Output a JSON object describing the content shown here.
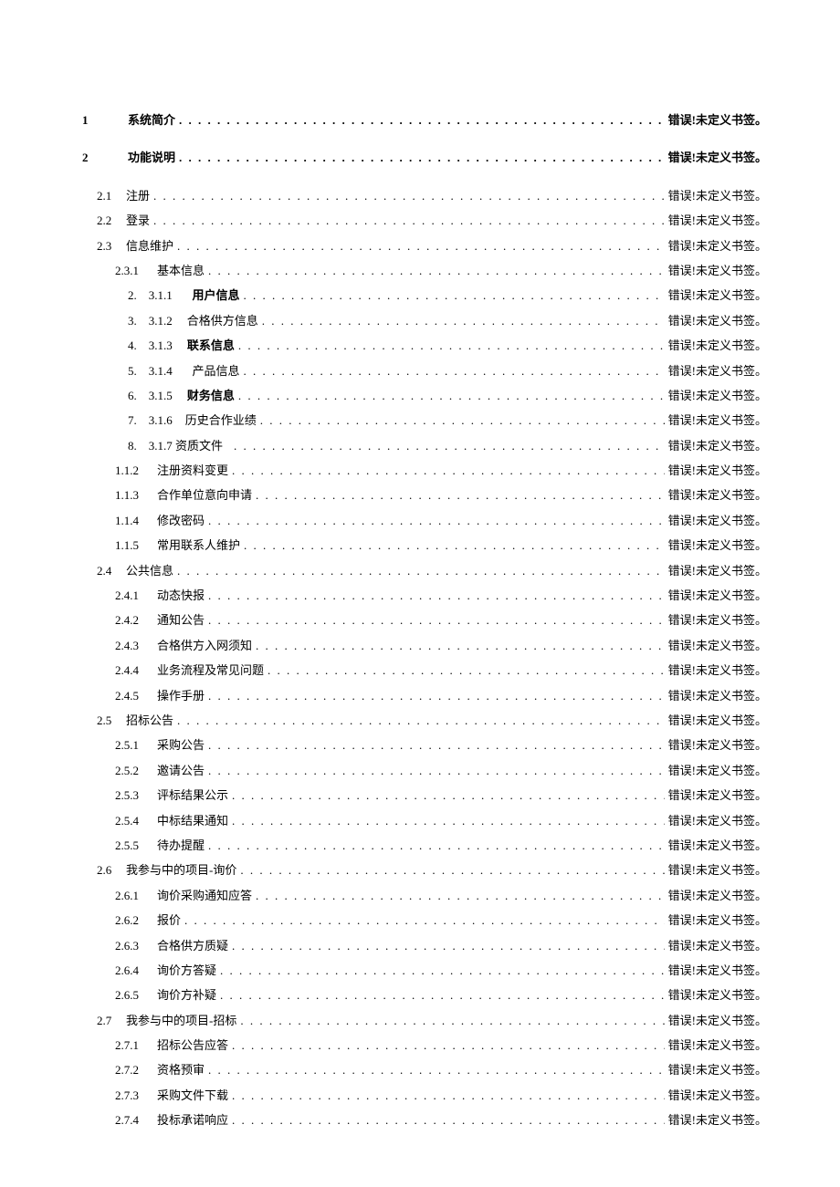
{
  "error_text": "错误!未定义书签。",
  "colors": {
    "background": "#ffffff",
    "text": "#000000"
  },
  "typography": {
    "font_family": "SimSun",
    "base_size_pt": 10
  },
  "toc": [
    {
      "level": 0,
      "num": "1",
      "title": "系统简介",
      "bold": true
    },
    {
      "level": 0,
      "num": "2",
      "title": "功能说明",
      "bold": true
    },
    {
      "level": 1,
      "num": "2.1",
      "title": "注册"
    },
    {
      "level": 1,
      "num": "2.2",
      "title": "登录"
    },
    {
      "level": 1,
      "num": "2.3",
      "title": "信息维护"
    },
    {
      "level": 2,
      "num": "2.3.1",
      "title": "基本信息"
    },
    {
      "level": 3,
      "num": "2.　3.1.1",
      "title": "用户信息",
      "bold_title": true,
      "pad_before_title": 24
    },
    {
      "level": 3,
      "num": "3.　3.1.2",
      "title": "合格供方信息",
      "pad_before_title": 8
    },
    {
      "level": 3,
      "num": "4.　3.1.3",
      "title": "联系信息",
      "bold_title": true,
      "pad_before_title": 8
    },
    {
      "level": 3,
      "num": "5.　3.1.4",
      "title": "产品信息",
      "pad_before_title": 24
    },
    {
      "level": 3,
      "num": "6.　3.1.5",
      "title": "财务信息",
      "bold_title": true,
      "pad_before_title": 8
    },
    {
      "level": 3,
      "num": "7.　3.1.6",
      "title": "历史合作业绩",
      "pad_before_title": 2
    },
    {
      "level": 3,
      "num": "8.　3.1.7 资质文件",
      "title": ""
    },
    {
      "level": 2,
      "num": "1.1.2",
      "title": "注册资料变更"
    },
    {
      "level": 2,
      "num": "1.1.3",
      "title": "合作单位意向申请"
    },
    {
      "level": 2,
      "num": "1.1.4",
      "title": "修改密码"
    },
    {
      "level": 2,
      "num": "1.1.5",
      "title": "常用联系人维护"
    },
    {
      "level": 1,
      "num": "2.4",
      "title": "公共信息"
    },
    {
      "level": 2,
      "num": "2.4.1",
      "title": "动态快报"
    },
    {
      "level": 2,
      "num": "2.4.2",
      "title": "通知公告"
    },
    {
      "level": 2,
      "num": "2.4.3",
      "title": "合格供方入网须知"
    },
    {
      "level": 2,
      "num": "2.4.4",
      "title": "业务流程及常见问题"
    },
    {
      "level": 2,
      "num": "2.4.5",
      "title": "操作手册"
    },
    {
      "level": 1,
      "num": "2.5",
      "title": "招标公告"
    },
    {
      "level": 2,
      "num": "2.5.1",
      "title": "采购公告"
    },
    {
      "level": 2,
      "num": "2.5.2",
      "title": "邀请公告"
    },
    {
      "level": 2,
      "num": "2.5.3",
      "title": "评标结果公示"
    },
    {
      "level": 2,
      "num": "2.5.4",
      "title": "中标结果通知"
    },
    {
      "level": 2,
      "num": "2.5.5",
      "title": "待办提醒"
    },
    {
      "level": 1,
      "num": "2.6",
      "title": "我参与中的项目-询价"
    },
    {
      "level": 2,
      "num": "2.6.1",
      "title": "询价采购通知应答"
    },
    {
      "level": 2,
      "num": "2.6.2",
      "title": "报价"
    },
    {
      "level": 2,
      "num": "2.6.3",
      "title": "合格供方质疑"
    },
    {
      "level": 2,
      "num": "2.6.4",
      "title": "询价方答疑"
    },
    {
      "level": 2,
      "num": "2.6.5",
      "title": "询价方补疑"
    },
    {
      "level": 1,
      "num": "2.7",
      "title": "我参与中的项目-招标"
    },
    {
      "level": 2,
      "num": "2.7.1",
      "title": "招标公告应答"
    },
    {
      "level": 2,
      "num": "2.7.2",
      "title": "资格预审"
    },
    {
      "level": 2,
      "num": "2.7.3",
      "title": "采购文件下载"
    },
    {
      "level": 2,
      "num": "2.7.4",
      "title": "投标承诺响应"
    }
  ]
}
